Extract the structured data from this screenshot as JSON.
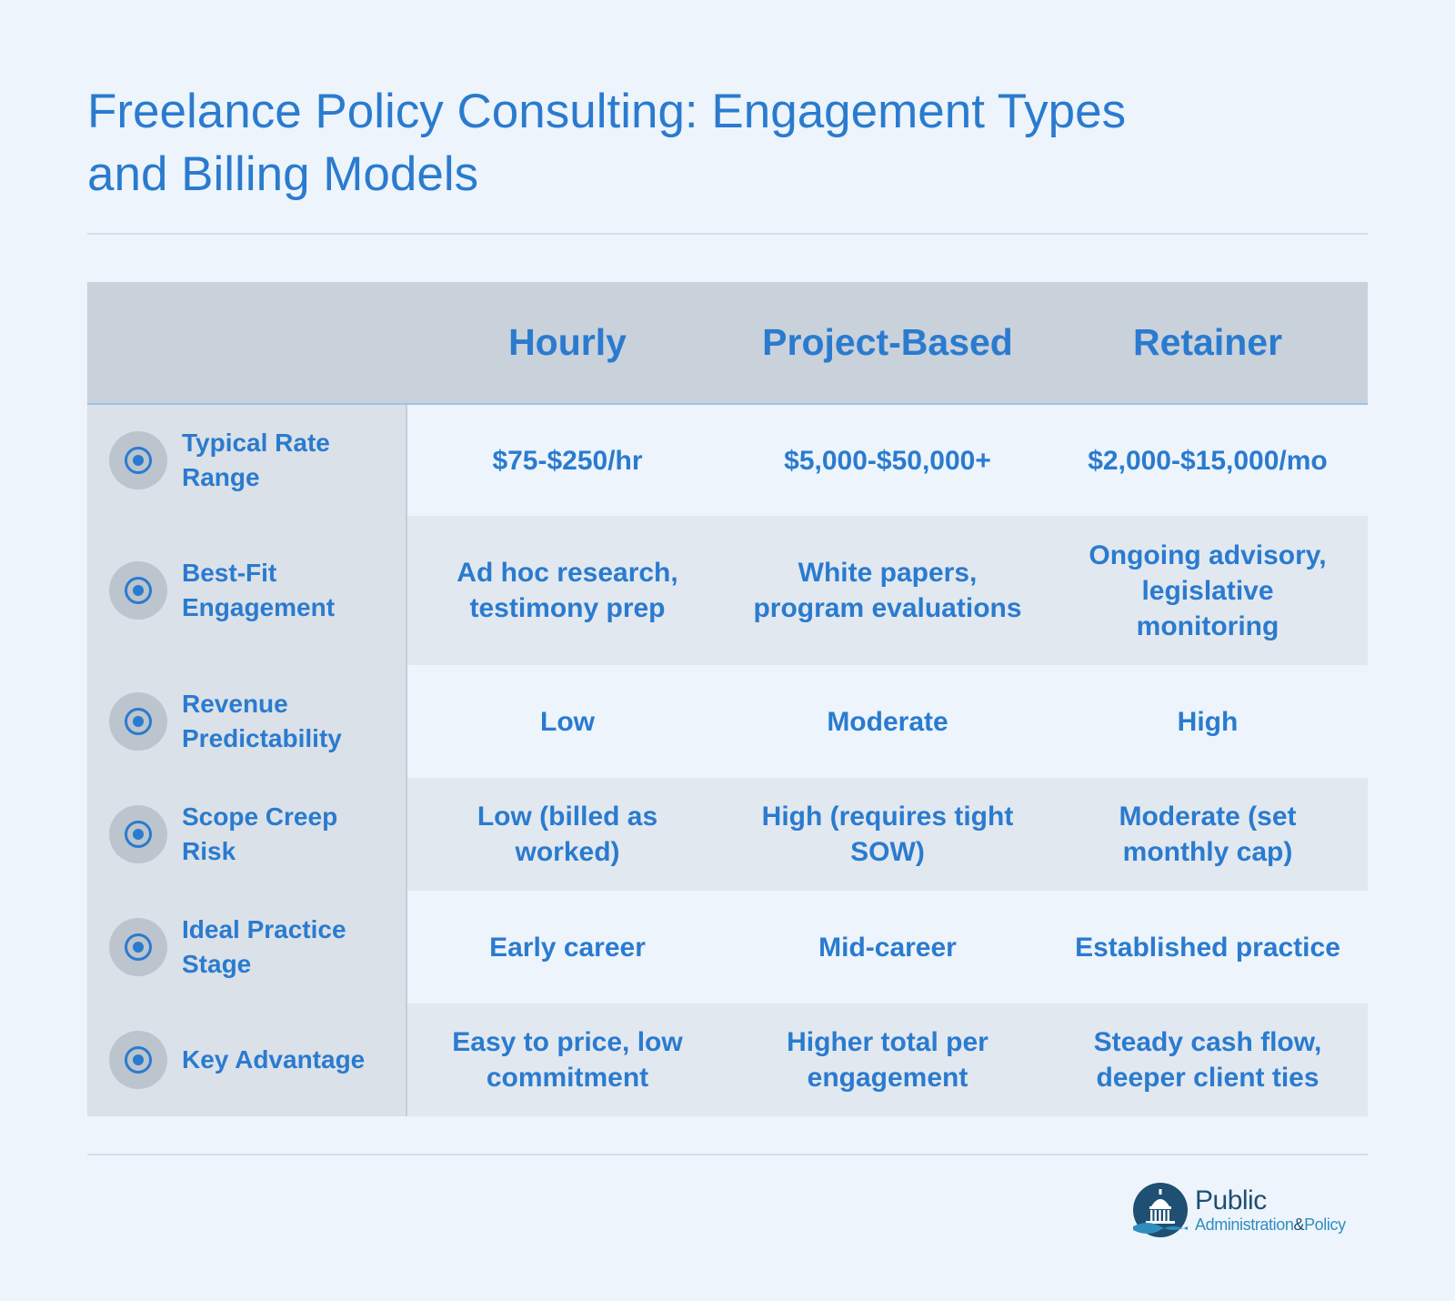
{
  "title_line1": "Freelance Policy Consulting: Engagement Types",
  "title_line2": "and Billing Models",
  "columns": [
    "Hourly",
    "Project-Based",
    "Retainer"
  ],
  "rows": [
    {
      "label": "Typical Rate Range",
      "icon": "target-icon",
      "values": [
        "$75-$250/hr",
        "$5,000-$50,000+",
        "$2,000-$15,000/mo"
      ]
    },
    {
      "label": "Best-Fit Engagement",
      "icon": "target-icon",
      "values": [
        "Ad hoc research, testimony prep",
        "White papers, program evaluations",
        "Ongoing advisory, legislative monitoring"
      ]
    },
    {
      "label": "Revenue Predictability",
      "icon": "target-icon",
      "values": [
        "Low",
        "Moderate",
        "High"
      ]
    },
    {
      "label": "Scope Creep Risk",
      "icon": "target-icon",
      "values": [
        "Low (billed as worked)",
        "High (requires tight SOW)",
        "Moderate (set monthly cap)"
      ]
    },
    {
      "label": "Ideal Practice Stage",
      "icon": "target-icon",
      "values": [
        "Early career",
        "Mid-career",
        "Established practice"
      ]
    },
    {
      "label": "Key Advantage",
      "icon": "target-icon",
      "values": [
        "Easy to price, low commitment",
        "Higher total per engagement",
        "Steady cash flow, deeper client ties"
      ]
    }
  ],
  "logo": {
    "line1": "Public",
    "line2_a": "Administration",
    "line2_amp": "&",
    "line2_b": "Policy",
    "icon": "capitol-dome-icon"
  },
  "colors": {
    "accent": "#2a7bcf",
    "background": "#edf4fb",
    "header_bg": "#c9d1da",
    "rowhead_bg": "#dbe1e8",
    "even_row_bg": "#e2e8ef",
    "icon_circle": "#bcc4cd",
    "logo_navy": "#1f4f72",
    "logo_teal": "#2f8ec0"
  }
}
